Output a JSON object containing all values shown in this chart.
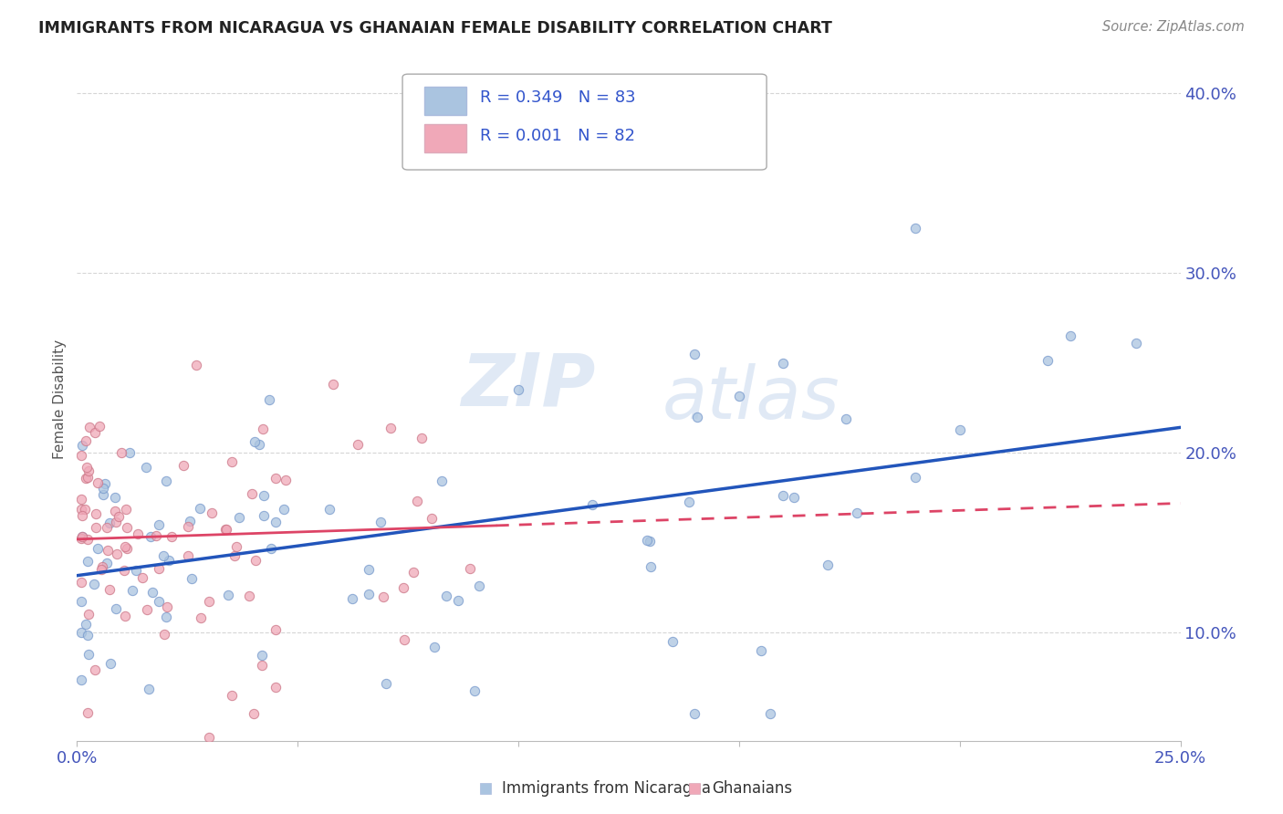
{
  "title": "IMMIGRANTS FROM NICARAGUA VS GHANAIAN FEMALE DISABILITY CORRELATION CHART",
  "source_text": "Source: ZipAtlas.com",
  "ylabel": "Female Disability",
  "xlim": [
    0.0,
    0.25
  ],
  "ylim": [
    0.04,
    0.42
  ],
  "blue_color": "#aac4e0",
  "pink_color": "#f0a8b8",
  "blue_line_color": "#2255bb",
  "pink_line_color": "#dd4466",
  "watermark_zip": "ZIP",
  "watermark_atlas": "atlas",
  "legend_label1": "Immigrants from Nicaragua",
  "legend_label2": "Ghanaians",
  "legend_r1": "R = 0.349",
  "legend_n1": "N = 83",
  "legend_r2": "R = 0.001",
  "legend_n2": "N = 82"
}
